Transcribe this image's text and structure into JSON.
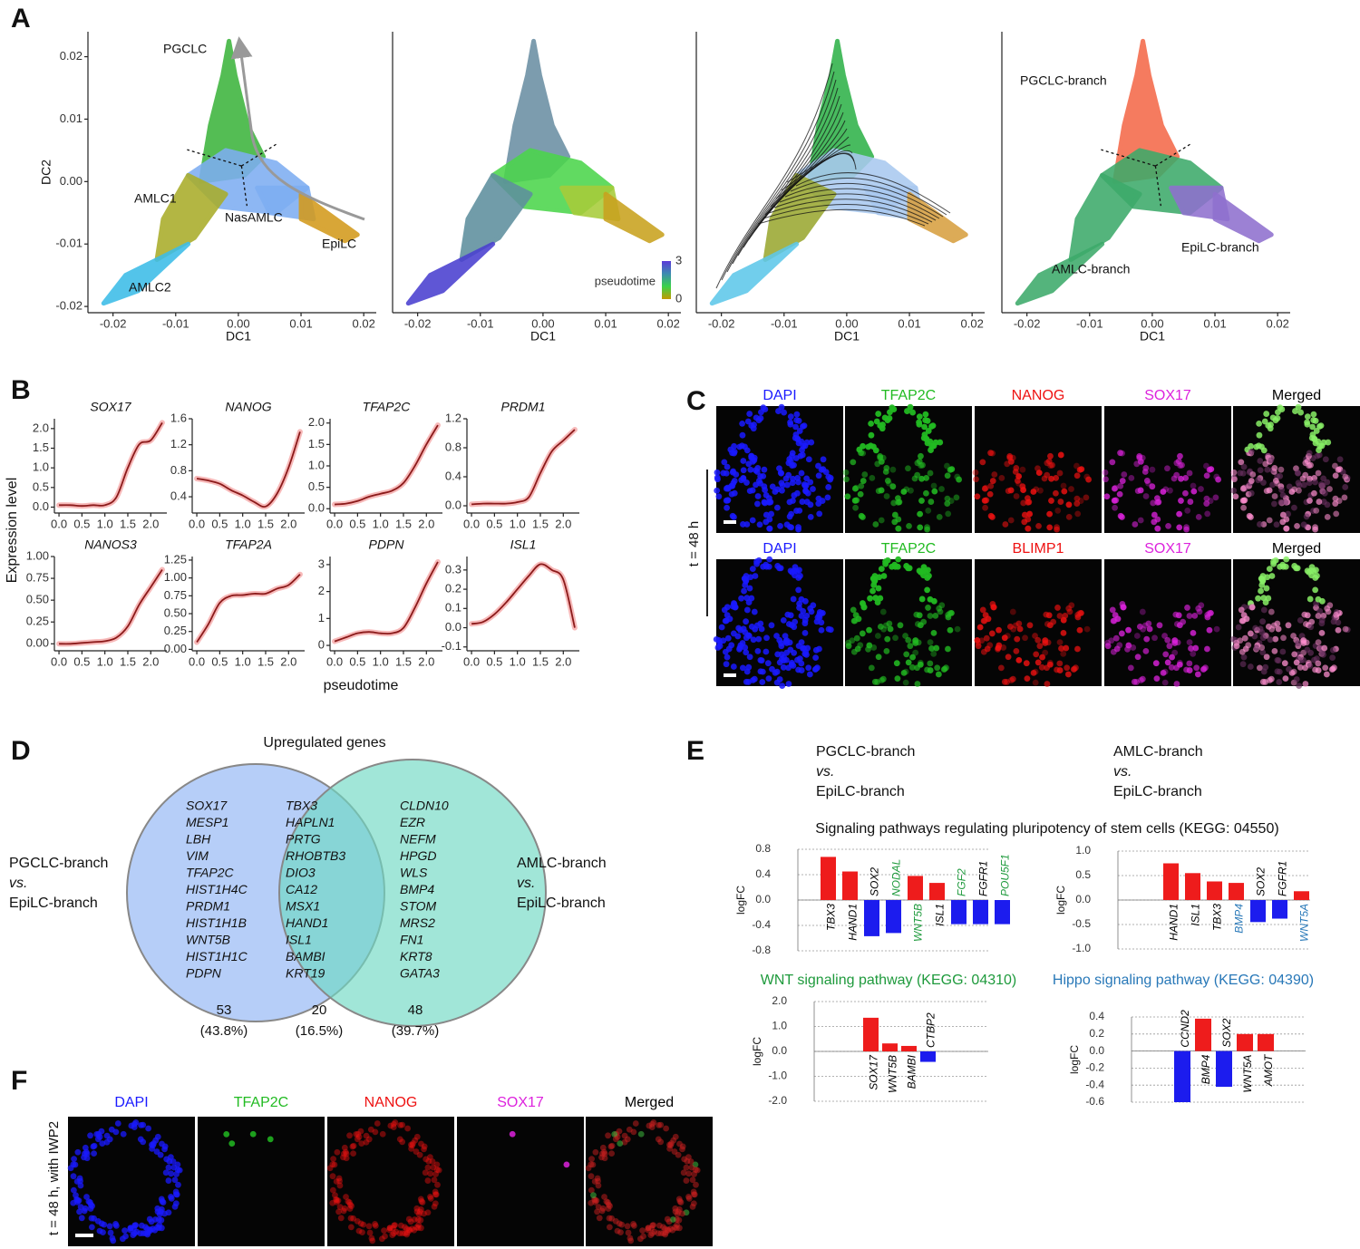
{
  "panel_labels": [
    "A",
    "B",
    "C",
    "D",
    "E",
    "F"
  ],
  "chart_data": [
    {
      "type": "scatter",
      "xlabel": "DC1",
      "ylabel": "DC2",
      "xlim": [
        -0.024,
        0.022
      ],
      "ylim": [
        -0.021,
        0.024
      ],
      "xticks": [
        -0.02,
        -0.01,
        {
          "value": 0,
          "label": "0.00"
        },
        0.01,
        0.02
      ],
      "yticks": [
        -0.02,
        -0.01,
        {
          "value": 0,
          "label": "0.00"
        },
        0.01,
        0.02
      ],
      "annotations": [
        "PGCLC",
        "AMLC1",
        "NasAMLC",
        "EpiLC",
        "AMLC2"
      ],
      "colors": [
        "#3db43d",
        "#7eaef2",
        "#a9ad2a",
        "#3cbde8",
        "#7eaef2",
        "#d39a1c"
      ]
    },
    {
      "type": "scatter",
      "xlabel": "DC1",
      "xlim": [
        -0.024,
        0.022
      ],
      "ylim": [
        -0.021,
        0.024
      ],
      "xticks": [
        -0.02,
        -0.01,
        {
          "value": 0,
          "label": "0.00"
        },
        0.01,
        0.02
      ],
      "colors": [
        "#6b8fa3",
        "#4cd64c",
        "#5e8f9e",
        "#4a3fd0",
        "#a8cc3a",
        "#c9a21e"
      ],
      "colorbar": {
        "title": "pseudotime",
        "ticks": [
          0,
          3
        ],
        "colors": [
          "#c49a00",
          "#3ad24a",
          "#3c8ab0",
          "#5a3ad8"
        ]
      }
    },
    {
      "type": "scatter",
      "xlabel": "DC1",
      "xlim": [
        -0.024,
        0.022
      ],
      "ylim": [
        -0.021,
        0.024
      ],
      "xticks": [
        -0.02,
        -0.01,
        {
          "value": 0,
          "label": "0.00"
        },
        0.01,
        0.02
      ],
      "colors": [
        "#2fb24a",
        "#a9c9f0",
        "#9aa832",
        "#5ec8ea",
        "#a9c9f0",
        "#d8a040"
      ]
    },
    {
      "type": "scatter",
      "xlabel": "DC1",
      "xlim": [
        -0.024,
        0.022
      ],
      "ylim": [
        -0.021,
        0.024
      ],
      "xticks": [
        -0.02,
        -0.01,
        {
          "value": 0,
          "label": "0.00"
        },
        0.01,
        0.02
      ],
      "annotations": [
        "PGCLC-branch",
        "EpiLC-branch",
        "AMLC-branch"
      ],
      "colors": [
        "#f4694a",
        "#3daa6a",
        "#3daa6a",
        "#3daa6a",
        "#8f70cf",
        "#8f70cf"
      ]
    },
    {
      "type": "line",
      "title": "SOX17",
      "color": "#8b1a1a",
      "x": [
        0,
        0.25,
        0.5,
        0.75,
        1,
        1.25,
        1.5,
        1.75,
        2,
        2.25
      ],
      "values": [
        0.05,
        0.05,
        0.03,
        0.05,
        0.05,
        0.25,
        1.0,
        1.6,
        1.7,
        2.15
      ],
      "xlim": [
        -0.1,
        2.35
      ],
      "ylim": [
        -0.15,
        2.25
      ],
      "xticks": [
        {
          "value": 0,
          "label": "0.0"
        },
        0.5,
        {
          "value": 1,
          "label": "1.0"
        },
        1.5,
        {
          "value": 2,
          "label": "2.0"
        }
      ],
      "yticks": [
        {
          "value": 0,
          "label": "0.0"
        },
        0.5,
        {
          "value": 1,
          "label": "1.0"
        },
        1.5,
        {
          "value": 2,
          "label": "2.0"
        }
      ]
    },
    {
      "type": "line",
      "title": "NANOG",
      "color": "#8b1a1a",
      "x": [
        0,
        0.25,
        0.5,
        0.75,
        1,
        1.25,
        1.5,
        1.75,
        2,
        2.25
      ],
      "values": [
        0.68,
        0.65,
        0.6,
        0.5,
        0.42,
        0.32,
        0.25,
        0.45,
        0.85,
        1.4
      ],
      "xlim": [
        -0.1,
        2.35
      ],
      "ylim": [
        0.15,
        1.6
      ],
      "xticks": [
        {
          "value": 0,
          "label": "0.0"
        },
        0.5,
        {
          "value": 1,
          "label": "1.0"
        },
        1.5,
        {
          "value": 2,
          "label": "2.0"
        }
      ],
      "yticks": [
        0.4,
        0.8,
        1.2,
        1.6
      ]
    },
    {
      "type": "line",
      "title": "TFAP2C",
      "color": "#8b1a1a",
      "x": [
        0,
        0.25,
        0.5,
        0.75,
        1,
        1.25,
        1.5,
        1.75,
        2,
        2.25
      ],
      "values": [
        0.1,
        0.12,
        0.18,
        0.28,
        0.35,
        0.42,
        0.6,
        1.0,
        1.5,
        1.95
      ],
      "xlim": [
        -0.1,
        2.35
      ],
      "ylim": [
        -0.1,
        2.1
      ],
      "xticks": [
        {
          "value": 0,
          "label": "0.0"
        },
        0.5,
        {
          "value": 1,
          "label": "1.0"
        },
        1.5,
        {
          "value": 2,
          "label": "2.0"
        }
      ],
      "yticks": [
        {
          "value": 0,
          "label": "0.0"
        },
        0.5,
        {
          "value": 1,
          "label": "1.0"
        },
        1.5,
        {
          "value": 2,
          "label": "2.0"
        }
      ]
    },
    {
      "type": "line",
      "title": "PRDM1",
      "color": "#8b1a1a",
      "x": [
        0,
        0.25,
        0.5,
        0.75,
        1,
        1.25,
        1.5,
        1.75,
        2,
        2.25
      ],
      "values": [
        0.02,
        0.03,
        0.03,
        0.03,
        0.05,
        0.12,
        0.45,
        0.75,
        0.9,
        1.05
      ],
      "xlim": [
        -0.1,
        2.35
      ],
      "ylim": [
        -0.1,
        1.2
      ],
      "xticks": [
        {
          "value": 0,
          "label": "0.0"
        },
        0.5,
        {
          "value": 1,
          "label": "1.0"
        },
        1.5,
        {
          "value": 2,
          "label": "2.0"
        }
      ],
      "yticks": [
        {
          "value": 0,
          "label": "0.0"
        },
        0.4,
        0.8,
        1.2
      ]
    },
    {
      "type": "line",
      "title": "NANOS3",
      "color": "#8b1a1a",
      "x": [
        0,
        0.25,
        0.5,
        0.75,
        1,
        1.25,
        1.5,
        1.75,
        2,
        2.25
      ],
      "values": [
        0.0,
        0.0,
        0.01,
        0.02,
        0.03,
        0.07,
        0.2,
        0.45,
        0.65,
        0.85
      ],
      "xlim": [
        -0.1,
        2.35
      ],
      "ylim": [
        -0.08,
        1.0
      ],
      "xticks": [
        {
          "value": 0,
          "label": "0.0"
        },
        0.5,
        {
          "value": 1,
          "label": "1.0"
        },
        1.5,
        {
          "value": 2,
          "label": "2.0"
        }
      ],
      "yticks": [
        {
          "value": 0,
          "label": "0.00"
        },
        0.25,
        {
          "value": 0.5,
          "label": "0.50"
        },
        0.75,
        {
          "value": 1,
          "label": "1.00"
        }
      ]
    },
    {
      "type": "line",
      "title": "TFAP2A",
      "color": "#8b1a1a",
      "x": [
        0,
        0.25,
        0.5,
        0.75,
        1,
        1.25,
        1.5,
        1.75,
        2,
        2.25
      ],
      "values": [
        0.1,
        0.35,
        0.65,
        0.75,
        0.76,
        0.78,
        0.78,
        0.85,
        0.9,
        1.05
      ],
      "xlim": [
        -0.1,
        2.35
      ],
      "ylim": [
        -0.02,
        1.3
      ],
      "xticks": [
        {
          "value": 0,
          "label": "0.0"
        },
        0.5,
        {
          "value": 1,
          "label": "1.0"
        },
        1.5,
        {
          "value": 2,
          "label": "2.0"
        }
      ],
      "yticks": [
        {
          "value": 0,
          "label": "0.00"
        },
        0.25,
        {
          "value": 0.5,
          "label": "0.50"
        },
        0.75,
        {
          "value": 1,
          "label": "1.00"
        },
        1.25
      ]
    },
    {
      "type": "line",
      "title": "PDPN",
      "color": "#8b1a1a",
      "x": [
        0,
        0.25,
        0.5,
        0.75,
        1,
        1.25,
        1.5,
        1.75,
        2,
        2.25
      ],
      "values": [
        0.15,
        0.3,
        0.45,
        0.5,
        0.45,
        0.45,
        0.65,
        1.4,
        2.3,
        3.1
      ],
      "xlim": [
        -0.1,
        2.35
      ],
      "ylim": [
        -0.2,
        3.3
      ],
      "xticks": [
        {
          "value": 0,
          "label": "0.0"
        },
        0.5,
        {
          "value": 1,
          "label": "1.0"
        },
        1.5,
        {
          "value": 2,
          "label": "2.0"
        }
      ],
      "yticks": [
        0,
        1,
        2,
        3
      ]
    },
    {
      "type": "line",
      "title": "ISL1",
      "color": "#8b1a1a",
      "x": [
        0,
        0.25,
        0.5,
        0.75,
        1,
        1.25,
        1.5,
        1.75,
        2,
        2.25
      ],
      "values": [
        0.02,
        0.03,
        0.07,
        0.13,
        0.2,
        0.27,
        0.33,
        0.3,
        0.25,
        0.0
      ],
      "xlim": [
        -0.1,
        2.35
      ],
      "ylim": [
        -0.12,
        0.37
      ],
      "xticks": [
        {
          "value": 0,
          "label": "0.0"
        },
        0.5,
        {
          "value": 1,
          "label": "1.0"
        },
        1.5,
        {
          "value": 2,
          "label": "2.0"
        }
      ],
      "yticks": [
        -0.1,
        {
          "value": 0,
          "label": "0.0"
        },
        0.1,
        0.2,
        0.3
      ]
    },
    {
      "type": "bar",
      "ylabel": "logFC",
      "grid": true,
      "positive_color": "#ee1c1c",
      "negative_color": "#1c1cee",
      "categories": [
        "TBX3",
        "HAND1",
        "SOX2",
        "NODAL",
        "WNT5B",
        "ISL1",
        "FGF2",
        "FGFR1",
        "POU5F1"
      ],
      "values": [
        0.68,
        0.45,
        -0.57,
        -0.52,
        0.38,
        0.27,
        -0.38,
        -0.38,
        -0.38
      ],
      "label_colors": [
        "#000000",
        "#000000",
        "#000000",
        "#1e9a3c",
        "#1e9a3c",
        "#000000",
        "#1e9a3c",
        "#000000",
        "#1e9a3c"
      ],
      "ylim": [
        -0.8,
        0.8
      ],
      "yticks": [
        0.8,
        0.4,
        {
          "value": 0,
          "label": "0.0"
        },
        -0.4,
        -0.8
      ]
    },
    {
      "type": "bar",
      "ylabel": "logFC",
      "grid": true,
      "positive_color": "#ee1c1c",
      "negative_color": "#1c1cee",
      "categories": [
        "HAND1",
        "ISL1",
        "TBX3",
        "BMP4",
        "SOX2",
        "FGFR1",
        "WNT5A"
      ],
      "values": [
        0.75,
        0.55,
        0.38,
        0.35,
        -0.45,
        -0.38,
        0.18
      ],
      "label_colors": [
        "#000000",
        "#000000",
        "#000000",
        "#2878b8",
        "#000000",
        "#000000",
        "#2878b8"
      ],
      "ylim": [
        -1,
        1
      ],
      "yticks": [
        {
          "value": 1,
          "label": "1.0"
        },
        0.5,
        {
          "value": 0,
          "label": "0.0"
        },
        -0.5,
        {
          "value": -1,
          "label": "-1.0"
        }
      ]
    },
    {
      "type": "bar",
      "title": "WNT signaling pathway (KEGG: 04310)",
      "title_color": "#1e9a3c",
      "ylabel": "logFC",
      "grid": true,
      "positive_color": "#ee1c1c",
      "negative_color": "#1c1cee",
      "categories": [
        "SOX17",
        "WNT5B",
        "BAMBI",
        "CTBP2"
      ],
      "values": [
        1.35,
        0.32,
        0.22,
        -0.42
      ],
      "label_colors": [
        "#000000",
        "#000000",
        "#000000",
        "#000000"
      ],
      "ylim": [
        -2,
        2
      ],
      "yticks": [
        {
          "value": 2,
          "label": "2.0"
        },
        {
          "value": 1,
          "label": "1.0"
        },
        {
          "value": 0,
          "label": "0.0"
        },
        {
          "value": -1,
          "label": "-1.0"
        },
        {
          "value": -2,
          "label": "-2.0"
        }
      ]
    },
    {
      "type": "bar",
      "title": "Hippo signaling pathway (KEGG: 04390)",
      "title_color": "#2878b8",
      "ylabel": "logFC",
      "grid": true,
      "positive_color": "#ee1c1c",
      "negative_color": "#1c1cee",
      "categories": [
        "CCND2",
        "BMP4",
        "SOX2",
        "WNT5A",
        "AMOT"
      ],
      "values": [
        -0.6,
        0.38,
        -0.42,
        0.2,
        0.2
      ],
      "label_colors": [
        "#000000",
        "#000000",
        "#000000",
        "#000000",
        "#000000"
      ],
      "ylim": [
        -0.6,
        0.4
      ],
      "yticks": [
        0.4,
        0.2,
        {
          "value": 0,
          "label": "0.0"
        },
        -0.2,
        -0.4,
        -0.6
      ]
    }
  ],
  "panel_b": {
    "ylabel": "Expression level",
    "xlabel": "pseudotime"
  },
  "panel_c": {
    "time_label": "t = 48 h",
    "rows": [
      [
        {
          "label": "DAPI",
          "color": "#1a1aff"
        },
        {
          "label": "TFAP2C",
          "color": "#22bb22"
        },
        {
          "label": "NANOG",
          "color": "#ee1111"
        },
        {
          "label": "SOX17",
          "color": "#dd22dd"
        },
        {
          "label": "Merged",
          "color": "#000000"
        }
      ],
      [
        {
          "label": "DAPI",
          "color": "#1a1aff"
        },
        {
          "label": "TFAP2C",
          "color": "#22bb22"
        },
        {
          "label": "BLIMP1",
          "color": "#ee1111"
        },
        {
          "label": "SOX17",
          "color": "#dd22dd"
        },
        {
          "label": "Merged",
          "color": "#000000"
        }
      ]
    ]
  },
  "panel_d": {
    "title": "Upregulated genes",
    "left_label": [
      "PGCLC-branch",
      "vs.",
      "EpiLC-branch"
    ],
    "right_label": [
      "AMLC-branch",
      "vs.",
      "EpiLC-branch"
    ],
    "gene_lists": [
      [
        "SOX17",
        "MESP1",
        "LBH",
        "VIM",
        "TFAP2C",
        "HIST1H4C",
        "PRDM1",
        "HIST1H1B",
        "WNT5B",
        "HIST1H1C",
        "PDPN"
      ],
      [
        "TBX3",
        "HAPLN1",
        "PRTG",
        "RHOBTB3",
        "DIO3",
        "CA12",
        "MSX1",
        "HAND1",
        "ISL1",
        "BAMBI",
        "KRT19"
      ],
      [
        "CLDN10",
        "EZR",
        "NEFM",
        "HPGD",
        "WLS",
        "BMP4",
        "STOM",
        "MRS2",
        "FN1",
        "KRT8",
        "GATA3"
      ]
    ],
    "counts": [
      53,
      20,
      48
    ],
    "percent_labels": [
      "(43.8%)",
      "(16.5%)",
      "(39.7%)"
    ]
  },
  "panel_e": {
    "comparisons": [
      [
        "PGCLC-branch",
        "vs.",
        "EpiLC-branch"
      ],
      [
        "AMLC-branch",
        "vs.",
        "EpiLC-branch"
      ]
    ],
    "title": "Signaling pathways regulating pluripotency of stem cells (KEGG: 04550)"
  },
  "panel_f": {
    "time_label": "t = 48 h, with IWP2",
    "channels": [
      {
        "label": "DAPI",
        "color": "#1a1aff"
      },
      {
        "label": "TFAP2C",
        "color": "#22bb22"
      },
      {
        "label": "NANOG",
        "color": "#ee1111"
      },
      {
        "label": "SOX17",
        "color": "#dd22dd"
      },
      {
        "label": "Merged",
        "color": "#000000"
      }
    ]
  }
}
